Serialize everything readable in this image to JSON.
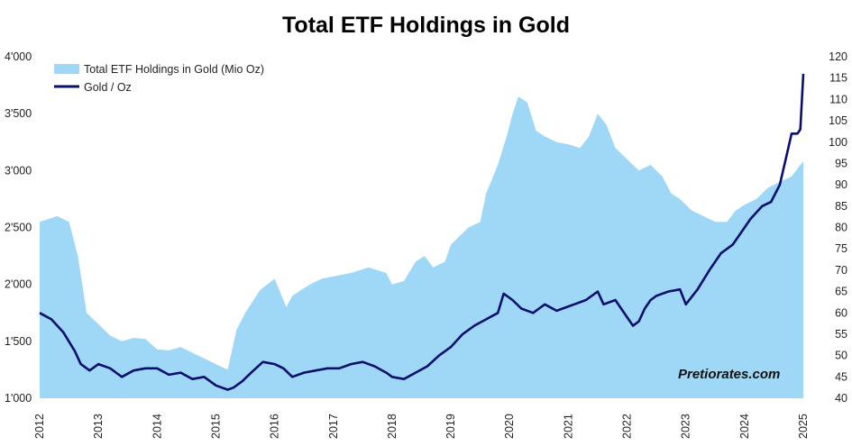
{
  "chart_data": {
    "type": "area",
    "title": "Total ETF Holdings in Gold",
    "watermark": "Pretiorates.com",
    "x_ticks": [
      "2012",
      "2013",
      "2014",
      "2015",
      "2016",
      "2017",
      "2018",
      "2019",
      "2020",
      "2021",
      "2022",
      "2023",
      "2024",
      "2025"
    ],
    "y_left": {
      "min": 1000,
      "max": 4000,
      "ticks": [
        "1'000",
        "1'500",
        "2'000",
        "2'500",
        "3'000",
        "3'500",
        "4'000"
      ],
      "tick_values": [
        1000,
        1500,
        2000,
        2500,
        3000,
        3500,
        4000
      ]
    },
    "y_right": {
      "min": 40,
      "max": 120,
      "ticks": [
        "40",
        "45",
        "50",
        "55",
        "60",
        "65",
        "70",
        "75",
        "80",
        "85",
        "90",
        "95",
        "100",
        "105",
        "110",
        "115",
        "120"
      ],
      "tick_values": [
        40,
        45,
        50,
        55,
        60,
        65,
        70,
        75,
        80,
        85,
        90,
        95,
        100,
        105,
        110,
        115,
        120
      ]
    },
    "legend_position": "top-left",
    "colors": {
      "area": "#9fd8f7",
      "line": "#0a0f6e"
    },
    "series": [
      {
        "name": "Total ETF Holdings in Gold (Mio Oz)",
        "axis": "left",
        "kind": "area",
        "x": [
          2012.0,
          2012.3,
          2012.5,
          2012.65,
          2012.8,
          2013.0,
          2013.2,
          2013.4,
          2013.6,
          2013.8,
          2014.0,
          2014.2,
          2014.4,
          2014.6,
          2014.8,
          2015.0,
          2015.2,
          2015.35,
          2015.5,
          2015.75,
          2016.0,
          2016.2,
          2016.3,
          2016.45,
          2016.6,
          2016.8,
          2017.0,
          2017.3,
          2017.6,
          2017.9,
          2018.0,
          2018.2,
          2018.4,
          2018.55,
          2018.7,
          2018.9,
          2019.0,
          2019.3,
          2019.5,
          2019.6,
          2019.8,
          2019.95,
          2020.05,
          2020.15,
          2020.3,
          2020.45,
          2020.6,
          2020.8,
          2021.0,
          2021.2,
          2021.35,
          2021.5,
          2021.65,
          2021.8,
          2022.0,
          2022.1,
          2022.2,
          2022.4,
          2022.6,
          2022.75,
          2022.9,
          2023.1,
          2023.3,
          2023.5,
          2023.7,
          2023.85,
          2024.0,
          2024.2,
          2024.4,
          2024.6,
          2024.8,
          2024.95,
          2025.0
        ],
        "values": [
          2550,
          2600,
          2550,
          2250,
          1750,
          1650,
          1550,
          1500,
          1530,
          1520,
          1430,
          1420,
          1450,
          1400,
          1350,
          1300,
          1250,
          1600,
          1750,
          1950,
          2050,
          1800,
          1900,
          1950,
          2000,
          2050,
          2070,
          2100,
          2150,
          2100,
          2000,
          2030,
          2200,
          2250,
          2150,
          2200,
          2350,
          2500,
          2550,
          2800,
          3050,
          3300,
          3500,
          3650,
          3600,
          3350,
          3300,
          3250,
          3230,
          3200,
          3300,
          3500,
          3400,
          3200,
          3100,
          3050,
          3000,
          3050,
          2950,
          2800,
          2750,
          2650,
          2600,
          2550,
          2550,
          2650,
          2700,
          2750,
          2850,
          2900,
          2950,
          3050,
          3080
        ]
      },
      {
        "name": "Gold / Oz",
        "axis": "right",
        "kind": "line",
        "x": [
          2012.0,
          2012.2,
          2012.4,
          2012.6,
          2012.7,
          2012.85,
          2013.0,
          2013.2,
          2013.4,
          2013.6,
          2013.8,
          2014.0,
          2014.2,
          2014.4,
          2014.6,
          2014.8,
          2015.0,
          2015.2,
          2015.3,
          2015.45,
          2015.6,
          2015.8,
          2016.0,
          2016.15,
          2016.3,
          2016.5,
          2016.7,
          2016.9,
          2017.1,
          2017.3,
          2017.5,
          2017.7,
          2017.9,
          2018.0,
          2018.2,
          2018.4,
          2018.6,
          2018.8,
          2019.0,
          2019.2,
          2019.4,
          2019.6,
          2019.8,
          2019.9,
          2020.05,
          2020.2,
          2020.4,
          2020.5,
          2020.6,
          2020.8,
          2020.9,
          2021.1,
          2021.3,
          2021.5,
          2021.6,
          2021.8,
          2022.0,
          2022.1,
          2022.2,
          2022.3,
          2022.4,
          2022.5,
          2022.7,
          2022.9,
          2023.0,
          2023.2,
          2023.4,
          2023.6,
          2023.8,
          2023.95,
          2024.1,
          2024.3,
          2024.45,
          2024.6,
          2024.7,
          2024.8,
          2024.9,
          2024.95,
          2025.0
        ],
        "values": [
          60,
          58.5,
          55.5,
          51,
          48,
          46.5,
          48,
          47,
          45,
          46.5,
          47,
          47,
          45.5,
          46,
          44.5,
          45,
          43,
          42,
          42.5,
          44,
          46,
          48.5,
          48,
          47,
          45,
          46,
          46.5,
          47,
          47,
          48,
          48.5,
          47.5,
          46,
          45,
          44.5,
          46,
          47.5,
          50,
          52,
          55,
          57,
          58.5,
          60,
          64.5,
          63,
          61,
          60,
          61,
          62,
          60.5,
          61,
          62,
          63,
          65,
          62,
          63,
          59,
          57,
          58,
          61,
          63,
          64,
          65,
          65.5,
          62,
          65.5,
          70,
          74,
          76,
          79,
          82,
          85,
          86,
          90,
          96,
          102,
          102,
          103,
          116
        ]
      }
    ]
  }
}
